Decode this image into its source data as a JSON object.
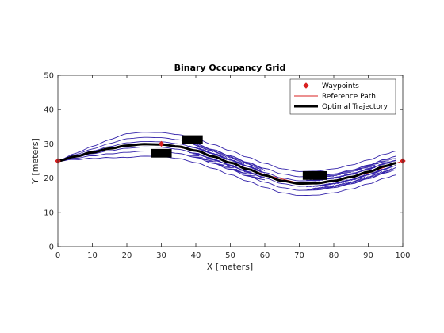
{
  "chart_data": {
    "type": "line",
    "title": "Binary Occupancy Grid",
    "xlabel": "X [meters]",
    "ylabel": "Y [meters]",
    "xlim": [
      0,
      100
    ],
    "ylim": [
      0,
      50
    ],
    "xticks": [
      0,
      10,
      20,
      30,
      40,
      50,
      60,
      70,
      80,
      90,
      100
    ],
    "yticks": [
      0,
      10,
      20,
      30,
      40,
      50
    ],
    "xtick_labels": [
      "0",
      "10",
      "20",
      "30",
      "40",
      "50",
      "60",
      "70",
      "80",
      "90",
      "100"
    ],
    "ytick_labels": [
      "0",
      "10",
      "20",
      "30",
      "40",
      "50"
    ],
    "grid": false,
    "legend_position": "top-right",
    "legend": [
      {
        "label": "Waypoints",
        "color": "#d92020",
        "style": "marker"
      },
      {
        "label": "Reference Path",
        "color": "#d92020",
        "style": "line"
      },
      {
        "label": "Optimal Trajectory",
        "color": "#000000",
        "style": "thick-line"
      }
    ],
    "waypoints": {
      "x": [
        0,
        30,
        100
      ],
      "y": [
        25,
        30,
        25
      ]
    },
    "reference_path": {
      "x": [
        0,
        10,
        20,
        30,
        40,
        50,
        60,
        70,
        80,
        90,
        100
      ],
      "y": [
        25,
        27.5,
        29.5,
        30,
        28,
        24.5,
        21,
        18.5,
        19,
        21.5,
        25
      ]
    },
    "optimal_trajectory": {
      "x": [
        0,
        5,
        10,
        15,
        20,
        25,
        30,
        35,
        40,
        45,
        50,
        55,
        60,
        65,
        70,
        75,
        80,
        85,
        90,
        95,
        98
      ],
      "y": [
        25,
        26.3,
        27.5,
        28.6,
        29.5,
        29.9,
        29.8,
        29.2,
        28,
        26.3,
        24.5,
        22.6,
        20.8,
        19.2,
        18.4,
        18.5,
        19.2,
        20.3,
        21.8,
        23.5,
        24.4
      ]
    },
    "candidate_offsets": [
      -3.5,
      -2,
      -0.8,
      0.8,
      2,
      3.5
    ],
    "obstacles": [
      {
        "x": [
          27,
          33
        ],
        "y": [
          26,
          28.5
        ]
      },
      {
        "x": [
          36,
          42
        ],
        "y": [
          30,
          32.5
        ]
      },
      {
        "x": [
          71,
          78
        ],
        "y": [
          19.5,
          22
        ]
      }
    ],
    "colors": {
      "candidates": "#3322aa",
      "reference": "#d92020",
      "optimal": "#000000",
      "obstacle": "#000000",
      "axes": "#262626"
    }
  }
}
